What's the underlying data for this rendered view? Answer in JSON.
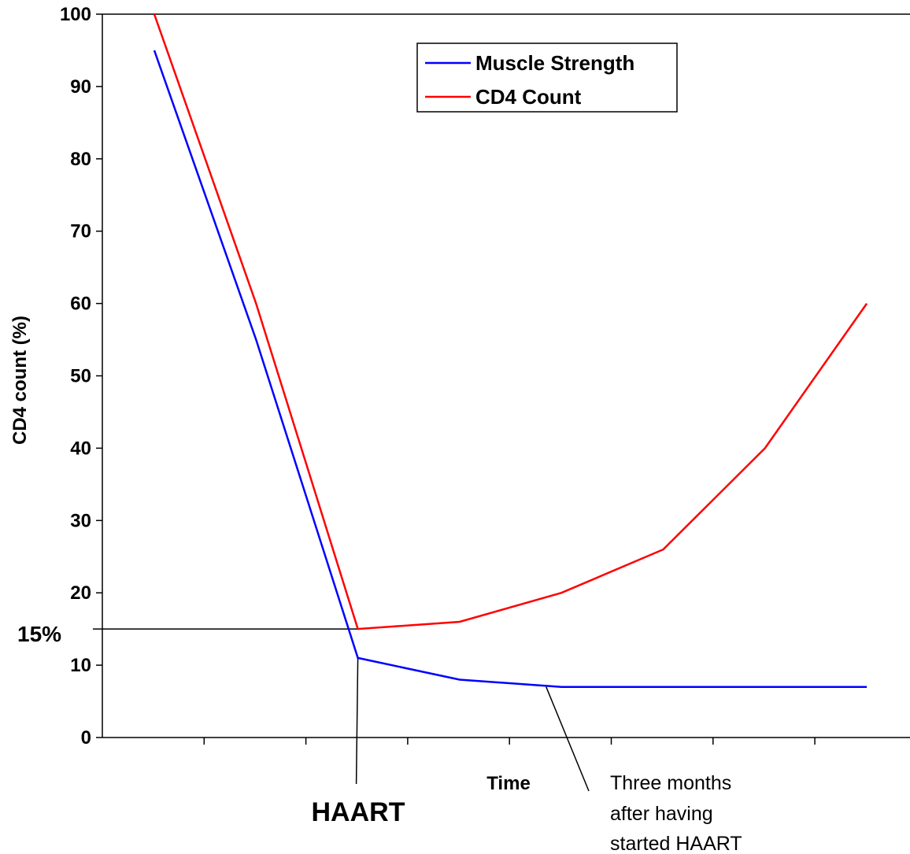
{
  "chart_data": {
    "type": "line",
    "xlabel": "Time",
    "ylabel": "CD4 count (%)",
    "ylim": [
      0,
      100
    ],
    "yticks": [
      0,
      10,
      20,
      30,
      40,
      50,
      60,
      70,
      80,
      90,
      100
    ],
    "x": [
      1,
      2,
      3,
      4,
      5,
      6,
      7,
      8
    ],
    "xlim": [
      0.5,
      8.0
    ],
    "grid": false,
    "legend_position": "top-right",
    "series": [
      {
        "name": "Muscle Strength",
        "color": "#0000ff",
        "values": [
          95,
          55,
          11,
          8,
          7,
          7,
          7,
          7
        ]
      },
      {
        "name": "CD4 Count",
        "color": "#ff0000",
        "values": [
          100,
          60,
          15,
          16,
          20,
          26,
          40,
          60
        ]
      }
    ],
    "annotations": {
      "threshold_label": "15%",
      "threshold_value": 15,
      "haart_label": "HAART",
      "haart_x": 3,
      "note_lines": [
        "Three months",
        "after having",
        "started HAART"
      ],
      "note_x": 4.85
    }
  }
}
